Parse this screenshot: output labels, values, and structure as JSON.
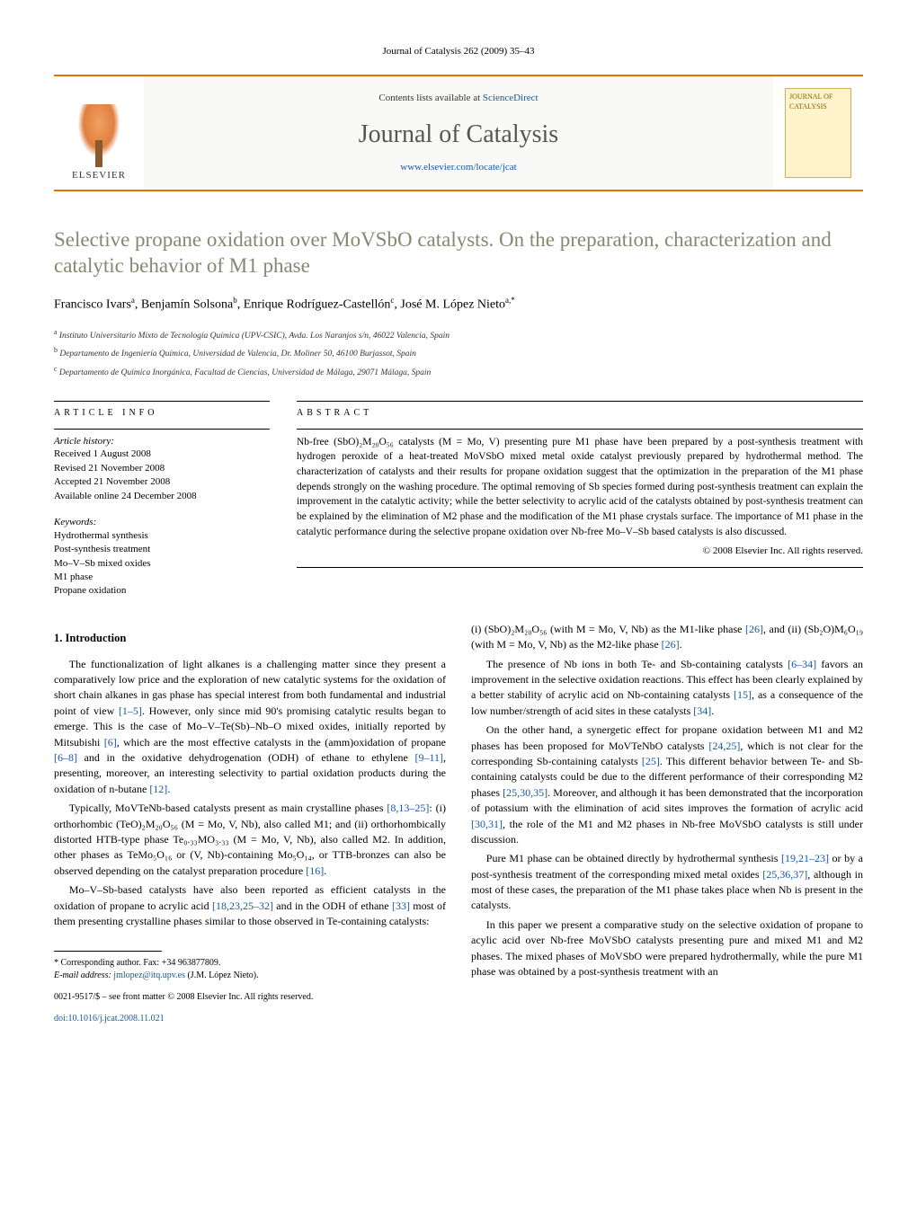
{
  "header_cite": "Journal of Catalysis 262 (2009) 35–43",
  "masthead": {
    "contents_prefix": "Contents lists available at ",
    "contents_link": "ScienceDirect",
    "journal_title": "Journal of Catalysis",
    "journal_url": "www.elsevier.com/locate/jcat",
    "publisher_label": "ELSEVIER",
    "cover_text": "JOURNAL OF CATALYSIS"
  },
  "article": {
    "title": "Selective propane oxidation over MoVSbO catalysts. On the preparation, characterization and catalytic behavior of M1 phase",
    "authors_html": "Francisco Ivars<sup>a</sup>, Benjamín Solsona<sup>b</sup>, Enrique Rodríguez-Castellón<sup>c</sup>, José M. López Nieto<sup>a,*</sup>",
    "affiliations": [
      "a Instituto Universitario Mixto de Tecnología Química (UPV-CSIC), Avda. Los Naranjos s/n, 46022 Valencia, Spain",
      "b Departamento de Ingeniería Química, Universidad de Valencia, Dr. Moliner 50, 46100 Burjassot, Spain",
      "c Departamento de Química Inorgánica, Facultad de Ciencias, Universidad de Málaga, 29071 Málaga, Spain"
    ]
  },
  "info": {
    "label": "ARTICLE INFO",
    "history_label": "Article history:",
    "history": [
      "Received 1 August 2008",
      "Revised 21 November 2008",
      "Accepted 21 November 2008",
      "Available online 24 December 2008"
    ],
    "keywords_label": "Keywords:",
    "keywords": [
      "Hydrothermal synthesis",
      "Post-synthesis treatment",
      "Mo–V–Sb mixed oxides",
      "M1 phase",
      "Propane oxidation"
    ]
  },
  "abstract": {
    "label": "ABSTRACT",
    "text": "Nb-free (SbO)₂M₂₀O₅₆ catalysts (M = Mo, V) presenting pure M1 phase have been prepared by a post-synthesis treatment with hydrogen peroxide of a heat-treated MoVSbO mixed metal oxide catalyst previously prepared by hydrothermal method. The characterization of catalysts and their results for propane oxidation suggest that the optimization in the preparation of the M1 phase depends strongly on the washing procedure. The optimal removing of Sb species formed during post-synthesis treatment can explain the improvement in the catalytic activity; while the better selectivity to acrylic acid of the catalysts obtained by post-synthesis treatment can be explained by the elimination of M2 phase and the modification of the M1 phase crystals surface. The importance of M1 phase in the catalytic performance during the selective propane oxidation over Nb-free Mo–V–Sb based catalysts is also discussed.",
    "copyright": "© 2008 Elsevier Inc. All rights reserved."
  },
  "section1_heading": "1. Introduction",
  "left_paragraphs": [
    "The functionalization of light alkanes is a challenging matter since they present a comparatively low price and the exploration of new catalytic systems for the oxidation of short chain alkanes in gas phase has special interest from both fundamental and industrial point of view [1–5]. However, only since mid 90's promising catalytic results began to emerge. This is the case of Mo–V–Te(Sb)–Nb–O mixed oxides, initially reported by Mitsubishi [6], which are the most effective catalysts in the (amm)oxidation of propane [6–8] and in the oxidative dehydrogenation (ODH) of ethane to ethylene [9–11], presenting, moreover, an interesting selectivity to partial oxidation products during the oxidation of n-butane [12].",
    "Typically, MoVTeNb-based catalysts present as main crystalline phases [8,13–25]: (i) orthorhombic (TeO)₂M₂₀O₅₆ (M = Mo, V, Nb), also called M1; and (ii) orthorhombically distorted HTB-type phase Te₀.₃₃MO₃.₃₃ (M = Mo, V, Nb), also called M2. In addition, other phases as TeMo₅O₁₆ or (V, Nb)-containing Mo₅O₁₄, or TTB-bronzes can also be observed depending on the catalyst preparation procedure [16].",
    "Mo–V–Sb-based catalysts have also been reported as efficient catalysts in the oxidation of propane to acrylic acid [18,23,25–32] and in the ODH of ethane [33] most of them presenting crystalline phases similar to those observed in Te-containing catalysts:"
  ],
  "right_paragraphs": [
    "(i) (SbO)₂M₂₀O₅₆ (with M = Mo, V, Nb) as the M1-like phase [26], and (ii) (Sb₂O)M₆O₁₉ (with M = Mo, V, Nb) as the M2-like phase [26].",
    "The presence of Nb ions in both Te- and Sb-containing catalysts [6–34] favors an improvement in the selective oxidation reactions. This effect has been clearly explained by a better stability of acrylic acid on Nb-containing catalysts [15], as a consequence of the low number/strength of acid sites in these catalysts [34].",
    "On the other hand, a synergetic effect for propane oxidation between M1 and M2 phases has been proposed for MoVTeNbO catalysts [24,25], which is not clear for the corresponding Sb-containing catalysts [25]. This different behavior between Te- and Sb-containing catalysts could be due to the different performance of their corresponding M2 phases [25,30,35]. Moreover, and although it has been demonstrated that the incorporation of potassium with the elimination of acid sites improves the formation of acrylic acid [30,31], the role of the M1 and M2 phases in Nb-free MoVSbO catalysts is still under discussion.",
    "Pure M1 phase can be obtained directly by hydrothermal synthesis [19,21–23] or by a post-synthesis treatment of the corresponding mixed metal oxides [25,36,37], although in most of these cases, the preparation of the M1 phase takes place when Nb is present in the catalysts.",
    "In this paper we present a comparative study on the selective oxidation of propane to acylic acid over Nb-free MoVSbO catalysts presenting pure and mixed M1 and M2 phases. The mixed phases of MoVSbO were prepared hydrothermally, while the pure M1 phase was obtained by a post-synthesis treatment with an"
  ],
  "footnote": {
    "corr": "* Corresponding author. Fax: +34 963877809.",
    "email_label": "E-mail address: ",
    "email": "jmlopez@itq.upv.es",
    "email_whom": " (J.M. López Nieto)."
  },
  "doi": {
    "line1": "0021-9517/$ – see front matter © 2008 Elsevier Inc. All rights reserved.",
    "doi": "doi:10.1016/j.jcat.2008.11.021"
  },
  "colors": {
    "rule_orange": "#e57200",
    "title_olive": "#878772",
    "link_blue": "#1557a0",
    "masthead_bg": "#f9f9f7",
    "cover_bg": "#fff3cc"
  }
}
